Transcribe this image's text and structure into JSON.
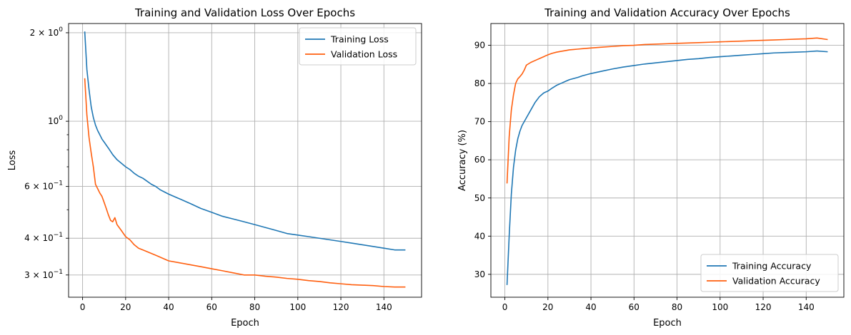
{
  "chart_data": [
    {
      "type": "line",
      "title": "Training and Validation Loss Over Epochs",
      "xlabel": "Epoch",
      "ylabel": "Loss",
      "yscale": "log",
      "xlim": [
        -6.5,
        157.5
      ],
      "ylim": [
        0.252,
        2.15
      ],
      "xticks": [
        0,
        20,
        40,
        60,
        80,
        100,
        120,
        140
      ],
      "xtick_labels": [
        "0",
        "20",
        "40",
        "60",
        "80",
        "100",
        "120",
        "140"
      ],
      "yticks_major": [
        {
          "value": 2.0,
          "base": "2 × 10",
          "exp": "0"
        },
        {
          "value": 1.0,
          "base": "10",
          "exp": "0"
        },
        {
          "value": 0.6,
          "base": "6 × 10",
          "exp": "−1"
        },
        {
          "value": 0.4,
          "base": "4 × 10",
          "exp": "−1"
        },
        {
          "value": 0.3,
          "base": "3 × 10",
          "exp": "−1"
        }
      ],
      "yticks_minor": [
        0.7,
        0.8,
        0.9,
        0.5
      ],
      "grid": true,
      "legend_position": "upper right",
      "series": [
        {
          "name": "Training Loss",
          "color": "#1f77b4",
          "points": [
            [
              1,
              2.02
            ],
            [
              2,
              1.5
            ],
            [
              3,
              1.28
            ],
            [
              4,
              1.12
            ],
            [
              5,
              1.03
            ],
            [
              6,
              0.97
            ],
            [
              7,
              0.93
            ],
            [
              8,
              0.9
            ],
            [
              9,
              0.87
            ],
            [
              10,
              0.85
            ],
            [
              12,
              0.81
            ],
            [
              14,
              0.77
            ],
            [
              16,
              0.74
            ],
            [
              18,
              0.72
            ],
            [
              20,
              0.7
            ],
            [
              22,
              0.685
            ],
            [
              24,
              0.665
            ],
            [
              26,
              0.65
            ],
            [
              28,
              0.64
            ],
            [
              30,
              0.625
            ],
            [
              32,
              0.61
            ],
            [
              34,
              0.6
            ],
            [
              36,
              0.585
            ],
            [
              38,
              0.575
            ],
            [
              40,
              0.565
            ],
            [
              45,
              0.545
            ],
            [
              50,
              0.525
            ],
            [
              55,
              0.505
            ],
            [
              60,
              0.49
            ],
            [
              65,
              0.475
            ],
            [
              70,
              0.465
            ],
            [
              75,
              0.455
            ],
            [
              80,
              0.445
            ],
            [
              85,
              0.435
            ],
            [
              90,
              0.425
            ],
            [
              95,
              0.415
            ],
            [
              100,
              0.41
            ],
            [
              105,
              0.405
            ],
            [
              110,
              0.4
            ],
            [
              115,
              0.395
            ],
            [
              120,
              0.39
            ],
            [
              125,
              0.385
            ],
            [
              130,
              0.38
            ],
            [
              135,
              0.375
            ],
            [
              140,
              0.37
            ],
            [
              145,
              0.365
            ],
            [
              150,
              0.365
            ]
          ]
        },
        {
          "name": "Validation Loss",
          "color": "#ff5f0f",
          "points": [
            [
              1,
              1.4
            ],
            [
              2,
              1.05
            ],
            [
              3,
              0.88
            ],
            [
              4,
              0.78
            ],
            [
              5,
              0.7
            ],
            [
              6,
              0.61
            ],
            [
              7,
              0.59
            ],
            [
              8,
              0.57
            ],
            [
              9,
              0.555
            ],
            [
              10,
              0.53
            ],
            [
              11,
              0.505
            ],
            [
              12,
              0.48
            ],
            [
              13,
              0.46
            ],
            [
              14,
              0.455
            ],
            [
              15,
              0.47
            ],
            [
              16,
              0.445
            ],
            [
              18,
              0.425
            ],
            [
              20,
              0.405
            ],
            [
              22,
              0.395
            ],
            [
              24,
              0.38
            ],
            [
              26,
              0.37
            ],
            [
              28,
              0.365
            ],
            [
              30,
              0.36
            ],
            [
              32,
              0.355
            ],
            [
              34,
              0.35
            ],
            [
              36,
              0.345
            ],
            [
              38,
              0.34
            ],
            [
              40,
              0.335
            ],
            [
              45,
              0.33
            ],
            [
              50,
              0.325
            ],
            [
              55,
              0.32
            ],
            [
              60,
              0.315
            ],
            [
              65,
              0.31
            ],
            [
              70,
              0.305
            ],
            [
              75,
              0.3
            ],
            [
              80,
              0.3
            ],
            [
              85,
              0.297
            ],
            [
              90,
              0.295
            ],
            [
              95,
              0.292
            ],
            [
              100,
              0.29
            ],
            [
              105,
              0.287
            ],
            [
              110,
              0.285
            ],
            [
              115,
              0.282
            ],
            [
              120,
              0.28
            ],
            [
              125,
              0.278
            ],
            [
              130,
              0.277
            ],
            [
              135,
              0.276
            ],
            [
              140,
              0.274
            ],
            [
              145,
              0.273
            ],
            [
              150,
              0.273
            ]
          ]
        }
      ]
    },
    {
      "type": "line",
      "title": "Training and Validation Accuracy Over Epochs",
      "xlabel": "Epoch",
      "ylabel": "Accuracy (%)",
      "yscale": "linear",
      "xlim": [
        -6.5,
        157.5
      ],
      "ylim": [
        24.0,
        95.7
      ],
      "xticks": [
        0,
        20,
        40,
        60,
        80,
        100,
        120,
        140
      ],
      "xtick_labels": [
        "0",
        "20",
        "40",
        "60",
        "80",
        "100",
        "120",
        "140"
      ],
      "yticks": [
        30,
        40,
        50,
        60,
        70,
        80,
        90
      ],
      "ytick_labels": [
        "30",
        "40",
        "50",
        "60",
        "70",
        "80",
        "90"
      ],
      "grid": true,
      "legend_position": "lower right",
      "series": [
        {
          "name": "Training Accuracy",
          "color": "#1f77b4",
          "points": [
            [
              1,
              27.2
            ],
            [
              2,
              40.0
            ],
            [
              3,
              51.0
            ],
            [
              4,
              58.0
            ],
            [
              5,
              62.5
            ],
            [
              6,
              65.5
            ],
            [
              7,
              67.5
            ],
            [
              8,
              69.0
            ],
            [
              9,
              70.0
            ],
            [
              10,
              71.0
            ],
            [
              12,
              73.0
            ],
            [
              14,
              75.0
            ],
            [
              16,
              76.5
            ],
            [
              18,
              77.5
            ],
            [
              20,
              78.0
            ],
            [
              22,
              78.8
            ],
            [
              24,
              79.5
            ],
            [
              26,
              80.0
            ],
            [
              28,
              80.5
            ],
            [
              30,
              81.0
            ],
            [
              32,
              81.3
            ],
            [
              34,
              81.6
            ],
            [
              36,
              82.0
            ],
            [
              38,
              82.3
            ],
            [
              40,
              82.6
            ],
            [
              45,
              83.2
            ],
            [
              50,
              83.8
            ],
            [
              55,
              84.3
            ],
            [
              60,
              84.7
            ],
            [
              65,
              85.1
            ],
            [
              70,
              85.4
            ],
            [
              75,
              85.7
            ],
            [
              80,
              86.0
            ],
            [
              85,
              86.3
            ],
            [
              90,
              86.5
            ],
            [
              95,
              86.8
            ],
            [
              100,
              87.0
            ],
            [
              105,
              87.2
            ],
            [
              110,
              87.4
            ],
            [
              115,
              87.6
            ],
            [
              120,
              87.8
            ],
            [
              125,
              88.0
            ],
            [
              130,
              88.1
            ],
            [
              135,
              88.2
            ],
            [
              140,
              88.3
            ],
            [
              145,
              88.5
            ],
            [
              150,
              88.3
            ]
          ]
        },
        {
          "name": "Validation Accuracy",
          "color": "#ff5f0f",
          "points": [
            [
              1,
              53.8
            ],
            [
              2,
              66.0
            ],
            [
              3,
              73.0
            ],
            [
              4,
              77.0
            ],
            [
              5,
              80.0
            ],
            [
              6,
              81.2
            ],
            [
              7,
              81.8
            ],
            [
              8,
              82.5
            ],
            [
              9,
              83.5
            ],
            [
              10,
              84.8
            ],
            [
              12,
              85.5
            ],
            [
              14,
              86.0
            ],
            [
              16,
              86.5
            ],
            [
              18,
              87.0
            ],
            [
              20,
              87.5
            ],
            [
              22,
              87.9
            ],
            [
              24,
              88.2
            ],
            [
              26,
              88.4
            ],
            [
              28,
              88.6
            ],
            [
              30,
              88.8
            ],
            [
              32,
              88.9
            ],
            [
              34,
              89.0
            ],
            [
              36,
              89.1
            ],
            [
              38,
              89.2
            ],
            [
              40,
              89.3
            ],
            [
              45,
              89.5
            ],
            [
              50,
              89.7
            ],
            [
              55,
              89.9
            ],
            [
              60,
              90.0
            ],
            [
              65,
              90.2
            ],
            [
              70,
              90.3
            ],
            [
              75,
              90.4
            ],
            [
              80,
              90.5
            ],
            [
              85,
              90.6
            ],
            [
              90,
              90.7
            ],
            [
              95,
              90.8
            ],
            [
              100,
              90.9
            ],
            [
              105,
              91.0
            ],
            [
              110,
              91.1
            ],
            [
              115,
              91.2
            ],
            [
              120,
              91.3
            ],
            [
              125,
              91.4
            ],
            [
              130,
              91.5
            ],
            [
              135,
              91.6
            ],
            [
              140,
              91.7
            ],
            [
              145,
              91.9
            ],
            [
              150,
              91.5
            ]
          ]
        }
      ]
    }
  ]
}
